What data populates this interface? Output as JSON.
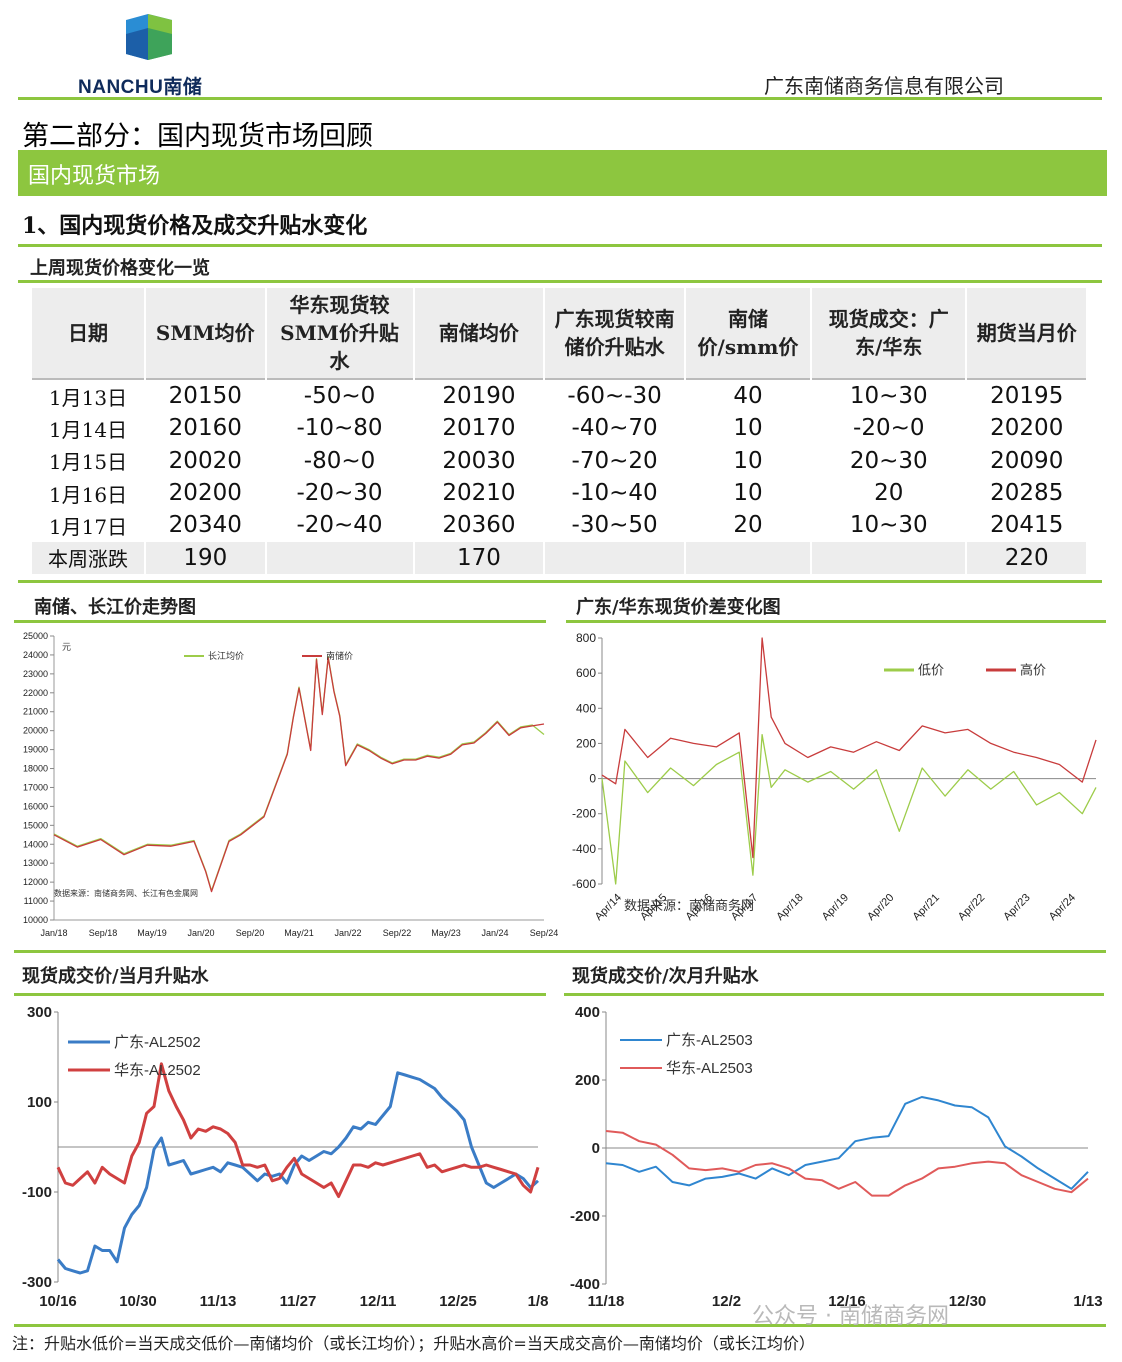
{
  "header": {
    "logo_text": "NANCHU南储",
    "company": "广东南储商务信息有限公司"
  },
  "part_title": "第二部分：国内现货市场回顾",
  "section_title": "国内现货市场",
  "subsection_title": "1、国内现货价格及成交升贴水变化",
  "table": {
    "caption": "上周现货价格变化一览",
    "headers": [
      "日期",
      "SMM均价",
      "华东现货较SMM价升贴水",
      "南储均价",
      "广东现货较南储价升贴水",
      "南储价/smm价",
      "现货成交：广东/华东",
      "期货当月价"
    ],
    "rows": [
      [
        "1月13日",
        "20150",
        "-50~0",
        "20190",
        "-60~-30",
        "40",
        "10~30",
        "20195"
      ],
      [
        "1月14日",
        "20160",
        "-10~80",
        "20170",
        "-40~70",
        "10",
        "-20~0",
        "20200"
      ],
      [
        "1月15日",
        "20020",
        "-80~0",
        "20030",
        "-70~20",
        "10",
        "20~30",
        "20090"
      ],
      [
        "1月16日",
        "20200",
        "-20~30",
        "20210",
        "-10~40",
        "10",
        "20",
        "20285"
      ],
      [
        "1月17日",
        "20340",
        "-20~40",
        "20360",
        "-30~50",
        "20",
        "10~30",
        "20415"
      ]
    ],
    "total": [
      "本周涨跌",
      "190",
      "",
      "170",
      "",
      "",
      "",
      "220"
    ]
  },
  "captions": {
    "chart1": "南储、长江价走势图",
    "chart2": "广东/华东现货价差变化图",
    "chart3": "现货成交价/当月升贴水",
    "chart4": "现货成交价/次月升贴水"
  },
  "chart_data": [
    {
      "type": "line",
      "unit": "元",
      "source": "数据来源：南储商务网、长江有色金属网",
      "ylim": [
        10000,
        25000
      ],
      "yticks": [
        10000,
        11000,
        12000,
        13000,
        14000,
        15000,
        16000,
        17000,
        18000,
        19000,
        20000,
        21000,
        22000,
        23000,
        24000,
        25000
      ],
      "xticks": [
        "Jan/18",
        "Sep/18",
        "May/19",
        "Jan/20",
        "Sep/20",
        "May/21",
        "Jan/22",
        "Sep/22",
        "May/23",
        "Jan/24",
        "Sep/24"
      ],
      "series": [
        {
          "name": "长江均价",
          "color": "#9dcc4a",
          "x": [
            0,
            4,
            8,
            12,
            16,
            20,
            24,
            26,
            27,
            30,
            32,
            36,
            40,
            41,
            42,
            44,
            45,
            46,
            47,
            48,
            49,
            50,
            52,
            54,
            56,
            58,
            60,
            62,
            64,
            66,
            68,
            70,
            72,
            74,
            76,
            78,
            80,
            82,
            84
          ],
          "values": [
            14550,
            13900,
            14300,
            13500,
            14000,
            13950,
            14200,
            12600,
            11550,
            14200,
            14550,
            15500,
            18800,
            20700,
            22300,
            19000,
            23800,
            20900,
            23900,
            22100,
            20800,
            18200,
            19300,
            19000,
            18600,
            18300,
            18500,
            18500,
            18700,
            18600,
            18800,
            19300,
            19400,
            19900,
            20500,
            19800,
            20200,
            20300,
            19800
          ]
        },
        {
          "name": "南储价",
          "color": "#c83c3c",
          "x": [
            0,
            4,
            8,
            12,
            16,
            20,
            24,
            26,
            27,
            30,
            32,
            36,
            40,
            41,
            42,
            44,
            45,
            46,
            47,
            48,
            49,
            50,
            52,
            54,
            56,
            58,
            60,
            62,
            64,
            66,
            68,
            70,
            72,
            74,
            76,
            78,
            80,
            82,
            84
          ],
          "values": [
            14500,
            13850,
            14250,
            13450,
            13950,
            13900,
            14150,
            12550,
            11500,
            14150,
            14500,
            15450,
            18750,
            20650,
            22250,
            18950,
            23750,
            20850,
            23850,
            22050,
            20750,
            18150,
            19250,
            18950,
            18550,
            18250,
            18450,
            18450,
            18650,
            18550,
            18750,
            19250,
            19350,
            19850,
            20450,
            19750,
            20150,
            20250,
            20350
          ]
        }
      ]
    },
    {
      "type": "line",
      "source": "数据来源：南储商务网",
      "ylim": [
        -600,
        800
      ],
      "yticks": [
        -600,
        -400,
        -200,
        0,
        200,
        400,
        600,
        800
      ],
      "xticks": [
        "Apr/14",
        "Apr/15",
        "Apr/16",
        "Apr/17",
        "Apr/18",
        "Apr/19",
        "Apr/20",
        "Apr/21",
        "Apr/22",
        "Apr/23",
        "Apr/24"
      ],
      "series": [
        {
          "name": "低价",
          "color": "#9dcc4a",
          "x": [
            0,
            0.3,
            0.5,
            1,
            1.5,
            2,
            2.5,
            3,
            3.3,
            3.5,
            3.7,
            4,
            4.5,
            5,
            5.5,
            6,
            6.5,
            7,
            7.5,
            8,
            8.5,
            9,
            9.5,
            10,
            10.5,
            10.8
          ],
          "values": [
            0,
            -600,
            100,
            -80,
            60,
            -40,
            80,
            150,
            -550,
            250,
            -50,
            50,
            -20,
            40,
            -60,
            50,
            -300,
            60,
            -100,
            50,
            -60,
            40,
            -150,
            -80,
            -200,
            -50
          ]
        },
        {
          "name": "高价",
          "color": "#c83c3c",
          "x": [
            0,
            0.3,
            0.5,
            1,
            1.5,
            2,
            2.5,
            3,
            3.3,
            3.5,
            3.7,
            4,
            4.5,
            5,
            5.5,
            6,
            6.5,
            7,
            7.5,
            8,
            8.5,
            9,
            9.5,
            10,
            10.5,
            10.8
          ],
          "values": [
            20,
            -30,
            280,
            120,
            230,
            200,
            180,
            260,
            -450,
            800,
            350,
            200,
            120,
            180,
            150,
            210,
            160,
            300,
            260,
            280,
            200,
            150,
            120,
            80,
            -20,
            220
          ]
        }
      ]
    },
    {
      "type": "line",
      "ylim": [
        -300,
        300
      ],
      "yticks": [
        -300,
        -100,
        100,
        300
      ],
      "xticks": [
        "10/16",
        "10/30",
        "11/13",
        "11/27",
        "12/11",
        "12/25",
        "1/8"
      ],
      "series": [
        {
          "name": "广东-AL2502",
          "color": "#3a7cc6",
          "x": [
            0,
            1,
            2,
            3,
            4,
            5,
            6,
            7,
            8,
            9,
            10,
            11,
            12,
            13,
            14,
            15,
            16,
            17,
            18,
            19,
            20,
            21,
            22,
            23,
            24,
            25,
            26,
            27,
            28,
            29,
            30,
            31,
            32,
            33,
            34,
            35,
            36,
            37,
            38,
            39,
            40,
            41,
            42,
            43,
            44,
            45,
            46,
            47,
            48,
            49,
            50,
            51,
            52,
            53,
            54,
            55,
            56,
            57,
            58,
            59,
            60,
            61,
            62,
            63,
            64,
            65
          ],
          "values": [
            -250,
            -270,
            -275,
            -280,
            -275,
            -220,
            -230,
            -230,
            -255,
            -180,
            -150,
            -130,
            -90,
            -5,
            20,
            -40,
            -35,
            -30,
            -60,
            -55,
            -50,
            -45,
            -55,
            -35,
            -40,
            -45,
            -60,
            -75,
            -60,
            -65,
            -60,
            -80,
            -40,
            -20,
            -30,
            -20,
            -10,
            -15,
            0,
            20,
            45,
            40,
            55,
            50,
            70,
            90,
            165,
            160,
            155,
            150,
            140,
            130,
            110,
            95,
            80,
            60,
            0,
            -40,
            -80,
            -90,
            -80,
            -70,
            -60,
            -70,
            -90,
            -75
          ]
        },
        {
          "name": "华东-AL2502",
          "color": "#d04040",
          "x": [
            0,
            1,
            2,
            3,
            4,
            5,
            6,
            7,
            8,
            9,
            10,
            11,
            12,
            13,
            14,
            15,
            16,
            17,
            18,
            19,
            20,
            21,
            22,
            23,
            24,
            25,
            26,
            27,
            28,
            29,
            30,
            31,
            32,
            33,
            34,
            35,
            36,
            37,
            38,
            39,
            40,
            41,
            42,
            43,
            44,
            45,
            46,
            47,
            48,
            49,
            50,
            51,
            52,
            53,
            54,
            55,
            56,
            57,
            58,
            59,
            60,
            61,
            62,
            63,
            64,
            65
          ],
          "values": [
            -45,
            -80,
            -85,
            -70,
            -55,
            -80,
            -45,
            -60,
            -70,
            -80,
            -20,
            10,
            75,
            90,
            185,
            125,
            90,
            60,
            20,
            40,
            35,
            45,
            40,
            30,
            10,
            -40,
            -40,
            -45,
            -40,
            -75,
            -70,
            -45,
            -25,
            -60,
            -70,
            -80,
            -90,
            -80,
            -110,
            -75,
            -40,
            -40,
            -45,
            -35,
            -40,
            -35,
            -30,
            -25,
            -20,
            -15,
            -45,
            -40,
            -55,
            -50,
            -45,
            -40,
            -45,
            -45,
            -40,
            -45,
            -50,
            -55,
            -60,
            -85,
            -100,
            -45
          ]
        }
      ]
    },
    {
      "type": "line",
      "ylim": [
        -400,
        400
      ],
      "yticks": [
        -400,
        -200,
        0,
        200,
        400
      ],
      "xticks": [
        "11/18",
        "12/2",
        "12/16",
        "12/30",
        "1/13"
      ],
      "series": [
        {
          "name": "广东-AL2503",
          "color": "#2f86d0",
          "x": [
            0,
            2,
            4,
            6,
            8,
            10,
            12,
            14,
            16,
            18,
            20,
            22,
            24,
            26,
            28,
            30,
            32,
            34,
            36,
            38,
            40,
            42,
            44,
            46,
            48,
            50,
            52,
            54,
            56,
            58
          ],
          "values": [
            -45,
            -50,
            -70,
            -55,
            -100,
            -110,
            -90,
            -85,
            -75,
            -90,
            -60,
            -80,
            -50,
            -40,
            -30,
            20,
            30,
            35,
            130,
            150,
            140,
            125,
            120,
            90,
            5,
            -25,
            -60,
            -90,
            -120,
            -70
          ]
        },
        {
          "name": "华东-AL2503",
          "color": "#e05a5a",
          "x": [
            0,
            2,
            4,
            6,
            8,
            10,
            12,
            14,
            16,
            18,
            20,
            22,
            24,
            26,
            28,
            30,
            32,
            34,
            36,
            38,
            40,
            42,
            44,
            46,
            48,
            50,
            52,
            54,
            56,
            58
          ],
          "values": [
            50,
            45,
            20,
            10,
            -20,
            -60,
            -65,
            -60,
            -70,
            -50,
            -45,
            -60,
            -90,
            -95,
            -120,
            -100,
            -140,
            -140,
            -110,
            -90,
            -60,
            -55,
            -45,
            -40,
            -45,
            -80,
            -100,
            -120,
            -130,
            -90
          ]
        }
      ]
    }
  ],
  "note": "注：升贴水低价=当天成交低价—南储均价（或长江均价）；升贴水高价=当天成交高价—南储均价（或长江均价）",
  "watermark": "公众号 · 南储商务网"
}
